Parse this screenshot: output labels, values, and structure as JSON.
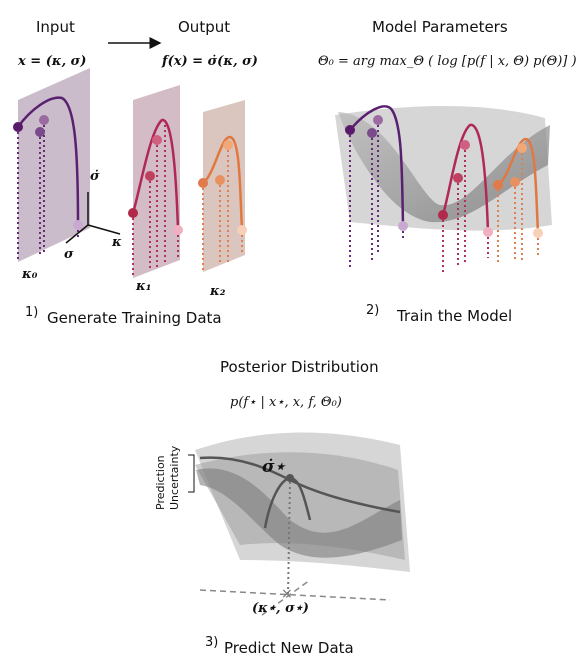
{
  "panel1": {
    "input_title": "Input",
    "output_title": "Output",
    "input_formula": "x = (κ, σ)",
    "output_formula": "f(x) = σ̇(κ, σ)",
    "axis_up": "σ̇",
    "axis_left": "σ",
    "axis_right": "κ",
    "plane_labels": [
      "κ₀",
      "κ₁",
      "κ₂"
    ],
    "step": "1)",
    "caption": "Generate Training Data"
  },
  "panel2": {
    "title": "Model Parameters",
    "formula": "Θ₀ = arg max_Θ ( log [p(f | x, Θ) p(Θ)] )",
    "step": "2)",
    "caption": "Train the Model"
  },
  "panel3": {
    "title": "Posterior Distribution",
    "formula": "p(f⋆ | x⋆, x, f, Θ₀)",
    "uncertainty_label": [
      "Prediction",
      "Uncertainty"
    ],
    "prediction_label": "σ̇⋆",
    "point_label": "(κ⋆, σ⋆)",
    "step": "3)",
    "caption": "Predict New Data"
  }
}
